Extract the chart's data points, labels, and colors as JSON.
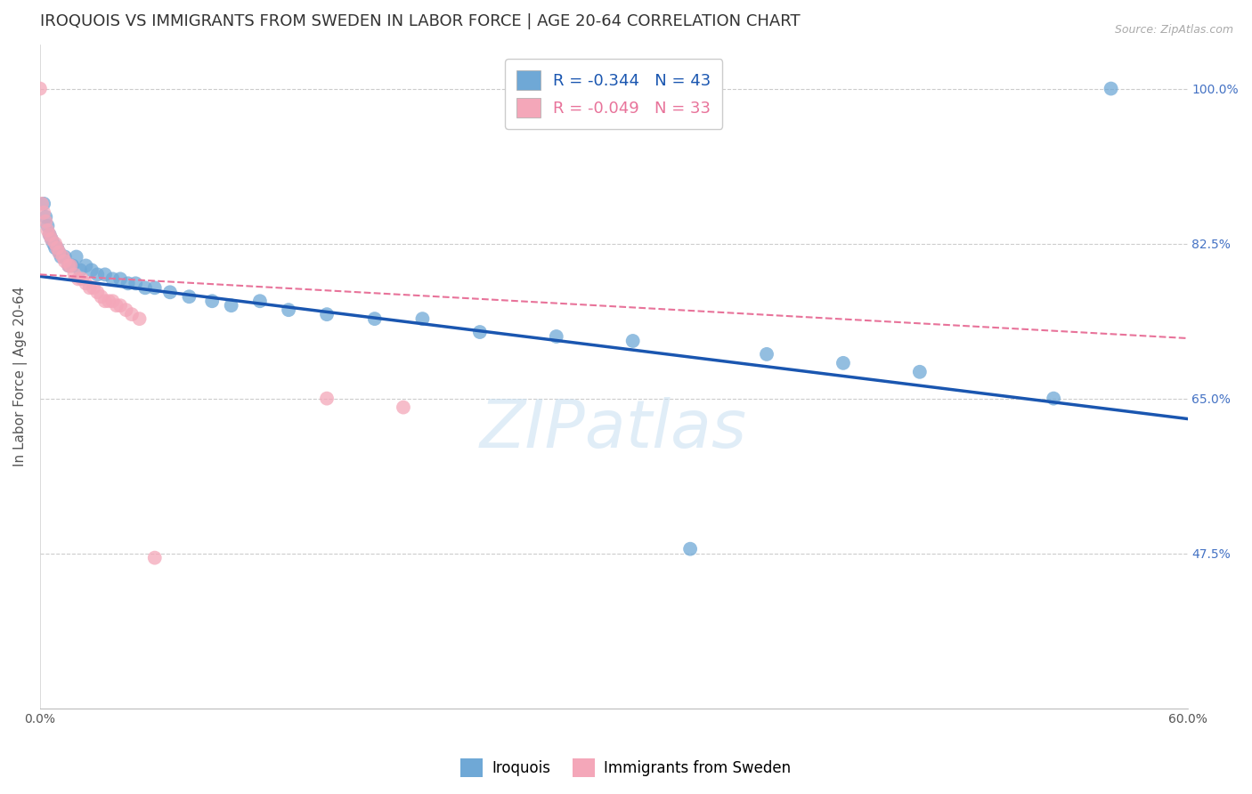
{
  "title": "IROQUOIS VS IMMIGRANTS FROM SWEDEN IN LABOR FORCE | AGE 20-64 CORRELATION CHART",
  "source": "Source: ZipAtlas.com",
  "ylabel": "In Labor Force | Age 20-64",
  "xlim": [
    0.0,
    0.6
  ],
  "ylim": [
    0.3,
    1.05
  ],
  "xticks": [
    0.0,
    0.1,
    0.2,
    0.3,
    0.4,
    0.5,
    0.6
  ],
  "xticklabels": [
    "0.0%",
    "",
    "",
    "",
    "",
    "",
    "60.0%"
  ],
  "ytick_positions": [
    1.0,
    0.825,
    0.65,
    0.475
  ],
  "yticklabels": [
    "100.0%",
    "82.5%",
    "65.0%",
    "47.5%"
  ],
  "watermark": "ZIPatlas",
  "legend_iroquois_label": "Iroquois",
  "legend_sweden_label": "Immigrants from Sweden",
  "iroquois_R": "-0.344",
  "iroquois_N": "43",
  "sweden_R": "-0.049",
  "sweden_N": "33",
  "iroquois_color": "#6fa8d6",
  "sweden_color": "#f4a7b9",
  "iroquois_line_color": "#1a56b0",
  "sweden_line_color": "#e8739a",
  "background_color": "#ffffff",
  "iroquois_x": [
    0.002,
    0.003,
    0.004,
    0.005,
    0.006,
    0.007,
    0.008,
    0.009,
    0.01,
    0.011,
    0.013,
    0.015,
    0.017,
    0.019,
    0.021,
    0.024,
    0.027,
    0.03,
    0.034,
    0.038,
    0.042,
    0.046,
    0.05,
    0.055,
    0.06,
    0.068,
    0.078,
    0.09,
    0.1,
    0.115,
    0.13,
    0.15,
    0.175,
    0.2,
    0.23,
    0.27,
    0.31,
    0.34,
    0.38,
    0.42,
    0.46,
    0.53,
    0.56
  ],
  "iroquois_y": [
    0.87,
    0.855,
    0.845,
    0.835,
    0.83,
    0.825,
    0.82,
    0.82,
    0.815,
    0.81,
    0.81,
    0.8,
    0.8,
    0.81,
    0.795,
    0.8,
    0.795,
    0.79,
    0.79,
    0.785,
    0.785,
    0.78,
    0.78,
    0.775,
    0.775,
    0.77,
    0.765,
    0.76,
    0.755,
    0.76,
    0.75,
    0.745,
    0.74,
    0.74,
    0.725,
    0.72,
    0.715,
    0.48,
    0.7,
    0.69,
    0.68,
    0.65,
    1.0
  ],
  "sweden_x": [
    0.0,
    0.001,
    0.002,
    0.003,
    0.004,
    0.005,
    0.006,
    0.008,
    0.009,
    0.01,
    0.012,
    0.013,
    0.015,
    0.016,
    0.018,
    0.02,
    0.022,
    0.024,
    0.026,
    0.028,
    0.03,
    0.032,
    0.034,
    0.036,
    0.038,
    0.04,
    0.042,
    0.045,
    0.048,
    0.052,
    0.06,
    0.15,
    0.19
  ],
  "sweden_y": [
    1.0,
    0.87,
    0.86,
    0.85,
    0.84,
    0.835,
    0.83,
    0.825,
    0.82,
    0.815,
    0.81,
    0.805,
    0.8,
    0.8,
    0.79,
    0.785,
    0.785,
    0.78,
    0.775,
    0.775,
    0.77,
    0.765,
    0.76,
    0.76,
    0.76,
    0.755,
    0.755,
    0.75,
    0.745,
    0.74,
    0.47,
    0.65,
    0.64
  ],
  "iroquois_trend_x": [
    0.0,
    0.6
  ],
  "iroquois_trend_y": [
    0.788,
    0.627
  ],
  "sweden_trend_x": [
    0.0,
    0.6
  ],
  "sweden_trend_y": [
    0.79,
    0.718
  ]
}
